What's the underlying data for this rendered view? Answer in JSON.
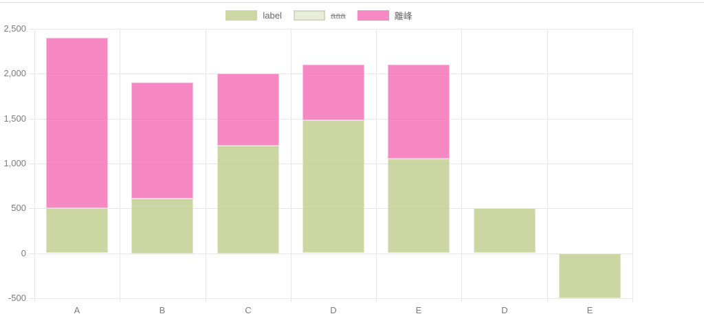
{
  "page": {
    "background_color": "#ffffff",
    "top_border_color": "#d9d9d9"
  },
  "axis_style": {
    "grid_color": "#e6e6e6",
    "tick_text_color": "#7b7b7b",
    "legend_text_color": "#666666"
  },
  "chart_data": {
    "type": "bar",
    "stacked": true,
    "title": "",
    "xlabel": "",
    "ylabel": "",
    "categories": [
      "A",
      "B",
      "C",
      "D",
      "E",
      "D",
      "E"
    ],
    "series": [
      {
        "name": "label",
        "color": "#c3d093",
        "hidden": false,
        "values": [
          500,
          610,
          1200,
          1480,
          1050,
          500,
          -500
        ]
      },
      {
        "name": "aaa",
        "color": "#e8edd9",
        "border_color": "#d1d8bd",
        "hidden": true,
        "values": []
      },
      {
        "name": "離峰",
        "color": "#f575ba",
        "hidden": false,
        "values": [
          1900,
          1290,
          800,
          620,
          1050,
          0,
          0
        ]
      }
    ],
    "ylim": [
      -500,
      2500
    ],
    "ytick_values": [
      2500,
      2000,
      1500,
      1000,
      500,
      0,
      -500
    ],
    "ytick_labels": [
      "2,500",
      "2,000",
      "1,500",
      "1,000",
      "500",
      "0",
      "-500"
    ],
    "grid": true,
    "legend_position": "top"
  }
}
